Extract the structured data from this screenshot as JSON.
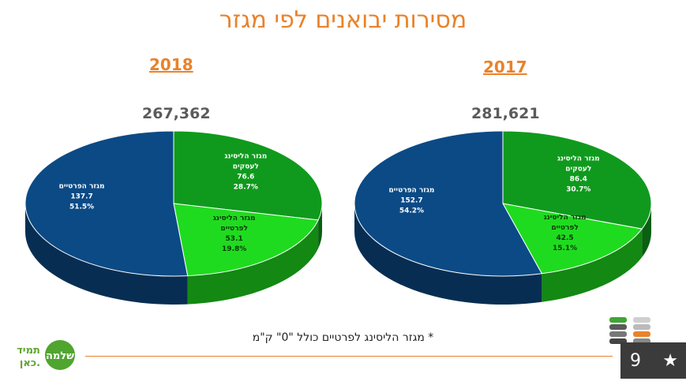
{
  "page": {
    "title": "מסירות יבואנים לפי מגזר"
  },
  "chart_data": [
    {
      "type": "pie",
      "title": "2018",
      "total_label": "267,362",
      "slices": [
        {
          "name": "מגזר הפרטיים",
          "value": 137.7,
          "percent": "51.5%",
          "color": "#0B4A85"
        },
        {
          "name": "מגזר הליסינג לפרטיים",
          "value": 53.1,
          "percent": "19.8%",
          "color": "#1FDB1F"
        },
        {
          "name": "מגזר הליסינג לעסקים",
          "value": 76.6,
          "percent": "28.7%",
          "color": "#0F9A1D"
        }
      ]
    },
    {
      "type": "pie",
      "title": "2017",
      "total_label": "281,621",
      "slices": [
        {
          "name": "מגזר הפרטיים",
          "value": 152.7,
          "percent": "54.2%",
          "color": "#0B4A85"
        },
        {
          "name": "מגזר הליסינג לפרטיים",
          "value": 42.5,
          "percent": "15.1%",
          "color": "#1FDB1F"
        },
        {
          "name": "מגזר הליסינג לעסקים",
          "value": 86.4,
          "percent": "30.7%",
          "color": "#0F9A1D"
        }
      ]
    }
  ],
  "footer": {
    "note": "* מגזר הליסינג לפרטיים כולל \"0\" ק\"מ",
    "slide_number": "9",
    "logo_left_text": "תמיד",
    "logo_left_text2": "כאן.",
    "logo_circle_text": "שלמה",
    "accent_color": "#E9822B"
  }
}
